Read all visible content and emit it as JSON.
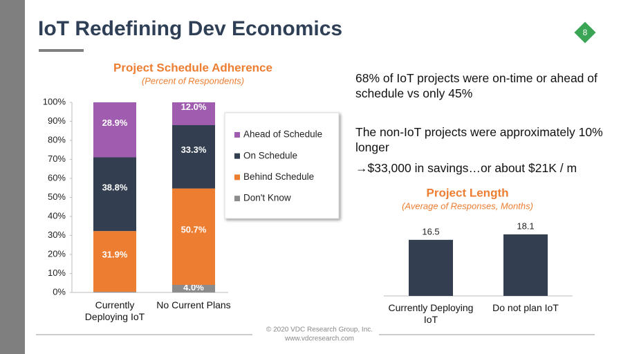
{
  "slide": {
    "title": "IoT Redefining Dev Economics",
    "page_number": "8",
    "notes": [
      "68% of IoT projects were on-time or ahead of schedule vs only 45%",
      "The non-IoT projects were approximately 10% longer",
      "→$33,000 in savings…or about $21K / m"
    ],
    "footer": [
      "© 2020 VDC Research Group, Inc.",
      "www.vdcresearch.com"
    ]
  },
  "chart_data": [
    {
      "type": "stacked_bar",
      "title": "Project Schedule Adherence",
      "subtitle": "(Percent of Respondents)",
      "categories": [
        "Currently Deploying IoT",
        "No Current Plans"
      ],
      "series": [
        {
          "name": "Ahead of Schedule",
          "color": "#a05db0",
          "values": [
            28.9,
            12.0
          ],
          "value_labels": [
            "28.9%",
            "12.0%"
          ]
        },
        {
          "name": "On Schedule",
          "color": "#333f50",
          "values": [
            38.8,
            33.3
          ],
          "value_labels": [
            "38.8%",
            "33.3%"
          ]
        },
        {
          "name": "Behind Schedule",
          "color": "#ed7d31",
          "values": [
            31.9,
            50.7
          ],
          "value_labels": [
            "31.9%",
            "50.7%"
          ]
        },
        {
          "name": "Don't Know",
          "color": "#8c8c8c",
          "values": [
            0.4,
            4.0
          ],
          "value_labels": [
            null,
            "4.0%"
          ]
        }
      ],
      "ylim": [
        0,
        100
      ],
      "yticks": [
        {
          "value": 0,
          "label": "0%"
        },
        {
          "value": 10,
          "label": "10%"
        },
        {
          "value": 20,
          "label": "20%"
        },
        {
          "value": 30,
          "label": "30%"
        },
        {
          "value": 40,
          "label": "40%"
        },
        {
          "value": 50,
          "label": "50%"
        },
        {
          "value": 60,
          "label": "60%"
        },
        {
          "value": 70,
          "label": "70%"
        },
        {
          "value": 80,
          "label": "80%"
        },
        {
          "value": 90,
          "label": "90%"
        },
        {
          "value": 100,
          "label": "100%"
        }
      ],
      "legend": "right"
    },
    {
      "type": "bar",
      "title": "Project Length",
      "subtitle": "(Average of Responses, Months)",
      "categories": [
        "Currently Deploying IoT",
        "Do not plan IoT"
      ],
      "values": [
        16.5,
        18.1
      ],
      "color": "#333f50"
    }
  ]
}
